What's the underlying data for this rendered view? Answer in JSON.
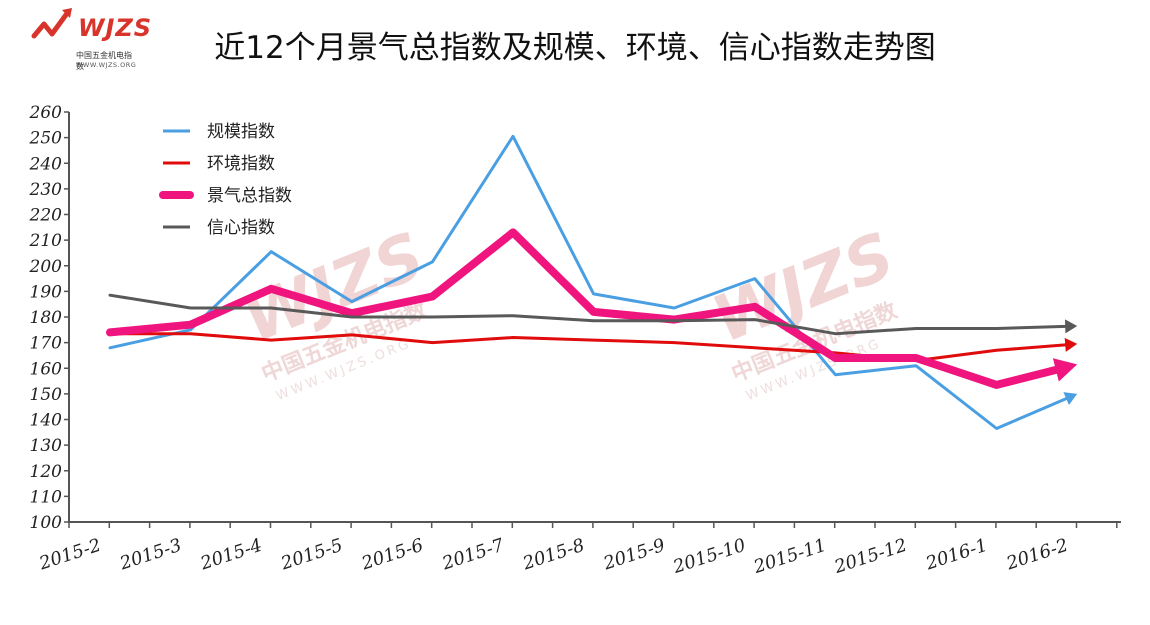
{
  "logo": {
    "mark": "WJZS",
    "subtitle": "中国五金机电指数",
    "url": "WWW.WJZS.ORG"
  },
  "watermark": {
    "mark": "WJZS",
    "subtitle": "中国五金机电指数",
    "url": "WWW.WJZS.ORG"
  },
  "chart_data": {
    "type": "line",
    "title": "近12个月景气总指数及规模、环境、信心指数走势图",
    "xlabel": "",
    "ylabel": "",
    "ylim": [
      100,
      260
    ],
    "yticks": [
      100,
      110,
      120,
      130,
      140,
      150,
      160,
      170,
      180,
      190,
      200,
      210,
      220,
      230,
      240,
      250,
      260
    ],
    "categories": [
      "2015-2",
      "2015-3",
      "2015-4",
      "2015-5",
      "2015-6",
      "2015-7",
      "2015-8",
      "2015-9",
      "2015-10",
      "2015-11",
      "2015-12",
      "2016-1",
      "2016-2"
    ],
    "legend_position": "top-left",
    "series": [
      {
        "name": "规模指数",
        "color": "#4a9fe3",
        "width": 3,
        "values": [
          168,
          175,
          205.5,
          186,
          201.5,
          250.5,
          189,
          183.5,
          195,
          157.5,
          161,
          136.5,
          150
        ]
      },
      {
        "name": "环境指数",
        "color": "#e00b0b",
        "width": 3,
        "values": [
          173.5,
          173.5,
          171,
          173,
          170,
          172,
          171,
          170,
          168,
          166,
          163,
          167,
          169.5
        ]
      },
      {
        "name": "景气总指数",
        "color": "#f0147f",
        "width": 8,
        "values": [
          174,
          177,
          191,
          181.5,
          188,
          213,
          182,
          179,
          184,
          164,
          164,
          153.5,
          161.5
        ]
      },
      {
        "name": "信心指数",
        "color": "#595959",
        "width": 3,
        "values": [
          188.5,
          183.5,
          183.5,
          180,
          180,
          180.5,
          178.5,
          178.5,
          179,
          173.5,
          175.5,
          175.5,
          176.5
        ]
      }
    ]
  }
}
